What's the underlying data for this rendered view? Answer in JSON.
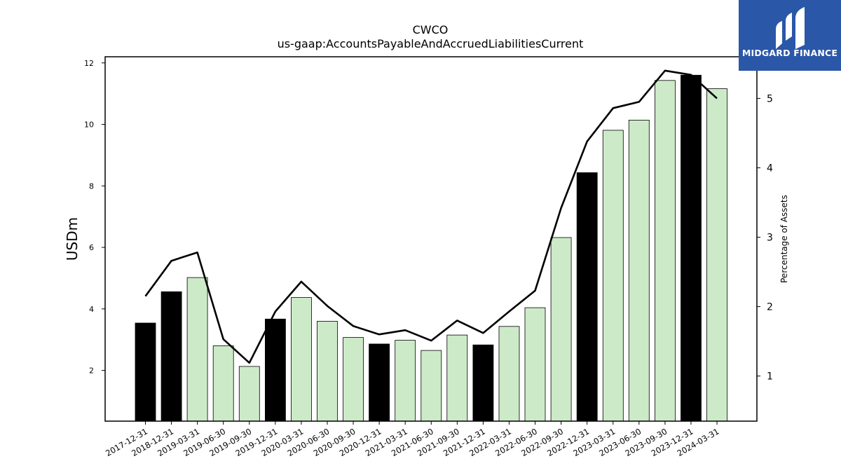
{
  "brand": {
    "name": "MIDGARD FINANCE",
    "bg_color": "#2b57a8"
  },
  "chart_data": {
    "type": "bar",
    "title": "CWCO",
    "subtitle": "us-gaap:AccountsPayableAndAccruedLiabilitiesCurrent",
    "ylabel": "USDm",
    "y2label": "Percentage of Assets",
    "ylim": [
      0.35,
      12.2
    ],
    "y2lim": [
      0.35,
      5.6
    ],
    "yticks": [
      2,
      4,
      6,
      8,
      10,
      12
    ],
    "y2ticks": [
      1,
      2,
      3,
      4,
      5
    ],
    "categories": [
      "2017-12-31",
      "2018-12-31",
      "2019-03-31",
      "2019-06-30",
      "2019-09-30",
      "2019-12-31",
      "2020-03-31",
      "2020-06-30",
      "2020-09-30",
      "2020-12-31",
      "2021-03-31",
      "2021-06-30",
      "2021-09-30",
      "2021-12-31",
      "2022-03-31",
      "2022-06-30",
      "2022-09-30",
      "2022-12-31",
      "2023-03-31",
      "2023-06-30",
      "2023-09-30",
      "2023-12-31",
      "2024-03-31"
    ],
    "series": [
      {
        "type": "bar",
        "axis": "left",
        "values": [
          3.54,
          4.56,
          5.02,
          2.8,
          2.13,
          3.67,
          4.37,
          3.6,
          3.07,
          2.86,
          2.98,
          2.65,
          3.15,
          2.83,
          3.43,
          4.04,
          6.32,
          8.43,
          9.81,
          10.14,
          11.43,
          11.6,
          11.16
        ],
        "annual_flags": [
          true,
          true,
          false,
          false,
          false,
          true,
          false,
          false,
          false,
          true,
          false,
          false,
          false,
          true,
          false,
          false,
          false,
          true,
          false,
          false,
          false,
          true,
          false
        ],
        "annual_color": "#000000",
        "quarter_color": "#cdeac8"
      },
      {
        "type": "line",
        "axis": "right",
        "color": "#000000",
        "values": [
          2.15,
          2.66,
          2.78,
          1.53,
          1.19,
          1.93,
          2.36,
          2.01,
          1.72,
          1.6,
          1.66,
          1.51,
          1.8,
          1.62,
          1.93,
          2.23,
          3.42,
          4.38,
          4.86,
          4.95,
          5.4,
          5.34,
          5.0
        ]
      }
    ],
    "grid": false,
    "legend": "none"
  }
}
